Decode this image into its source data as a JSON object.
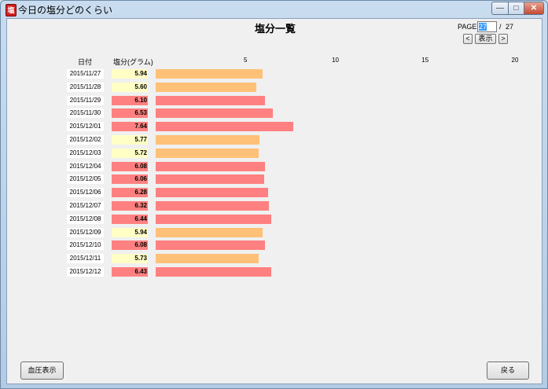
{
  "window": {
    "title": "今日の塩分どのくらい"
  },
  "header": {
    "title": "塩分一覧"
  },
  "pager": {
    "label": "PAGE",
    "current": "27",
    "separator": "/",
    "total": "27",
    "prev": "<",
    "show": "表示",
    "next": ">"
  },
  "table": {
    "date_header": "日付",
    "salt_header": "塩分(グラム)"
  },
  "colors": {
    "low_cell": "#ffffc6",
    "low_bar": "#ffc078",
    "high_cell": "#ff8080",
    "high_bar": "#ff8080"
  },
  "chart_data": {
    "type": "bar",
    "orientation": "horizontal",
    "xlim": [
      0,
      20
    ],
    "xticks": [
      "5",
      "10",
      "15",
      "20"
    ],
    "categories": [
      "2015/11/27",
      "2015/11/28",
      "2015/11/29",
      "2015/11/30",
      "2015/12/01",
      "2015/12/02",
      "2015/12/03",
      "2015/12/04",
      "2015/12/05",
      "2015/12/06",
      "2015/12/07",
      "2015/12/08",
      "2015/12/09",
      "2015/12/10",
      "2015/12/11",
      "2015/12/12"
    ],
    "values": [
      5.94,
      5.6,
      6.1,
      6.53,
      7.64,
      5.77,
      5.72,
      6.08,
      6.06,
      6.28,
      6.32,
      6.44,
      5.94,
      6.08,
      5.73,
      6.43
    ],
    "labels": [
      "5.94",
      "5.60",
      "6.10",
      "6.53",
      "7.64",
      "5.77",
      "5.72",
      "6.08",
      "6.06",
      "6.28",
      "6.32",
      "6.44",
      "5.94",
      "6.08",
      "5.73",
      "6.43"
    ]
  },
  "buttons": {
    "blood_pressure": "血圧表示",
    "back": "戻る"
  }
}
